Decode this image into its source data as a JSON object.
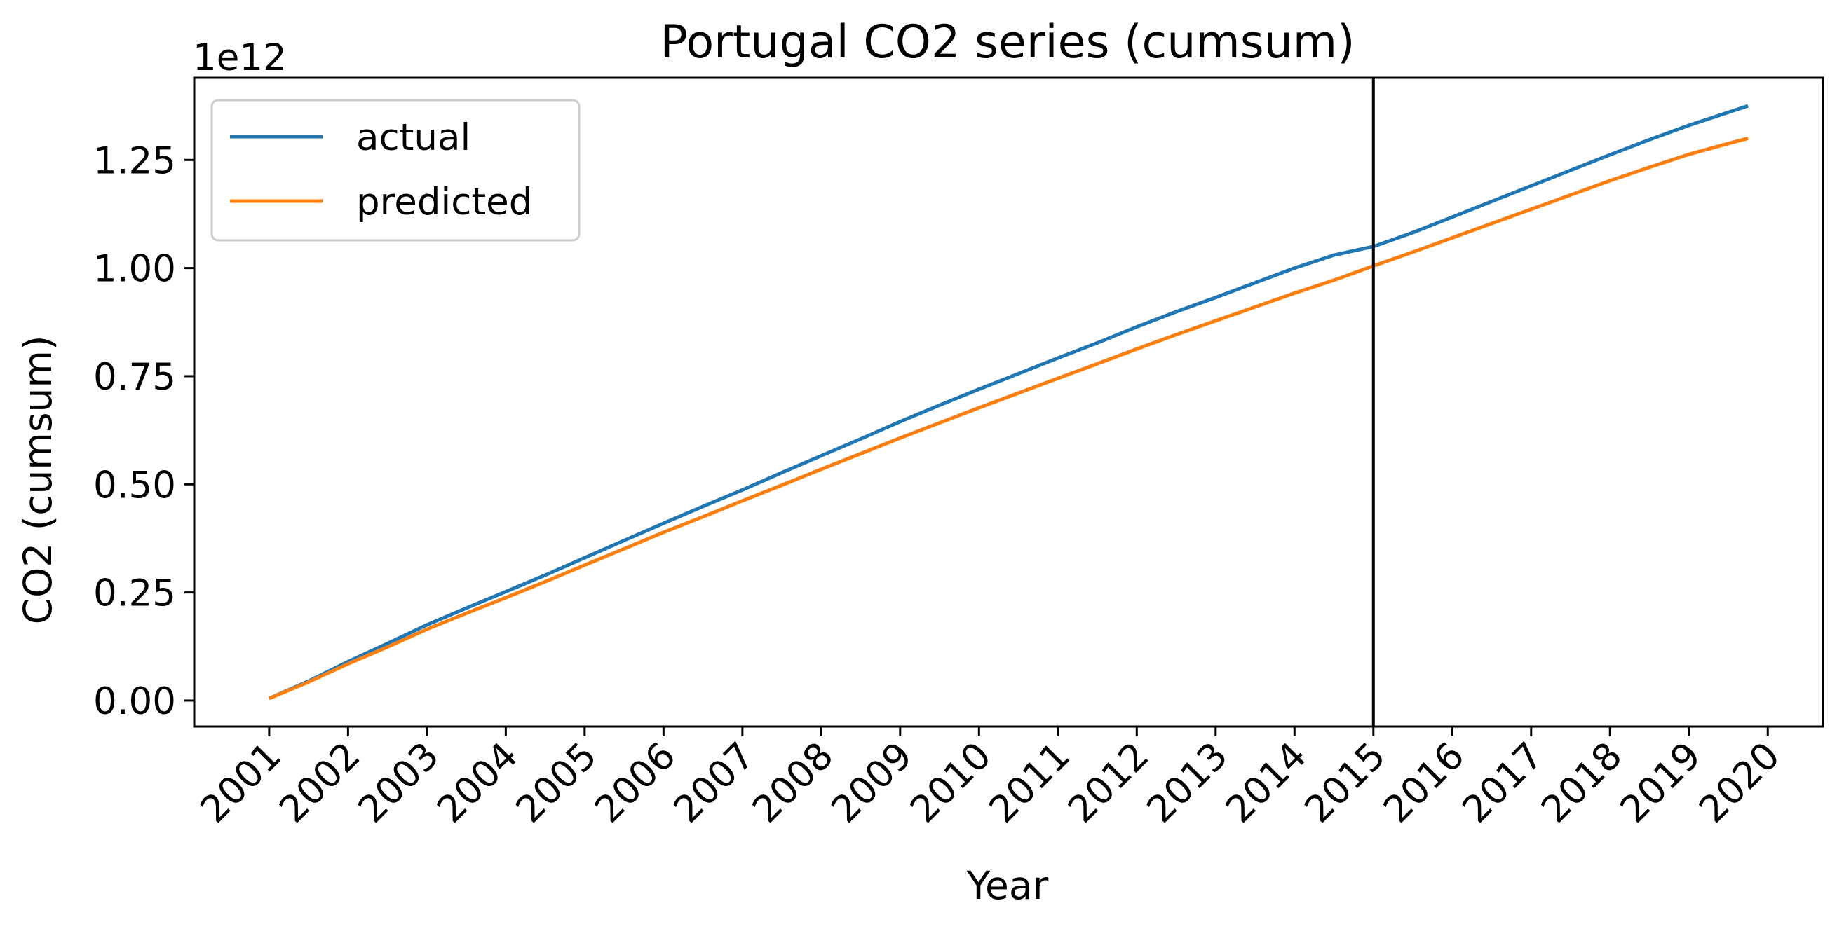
{
  "chart_data": {
    "type": "line",
    "title": "Portugal  CO2 series (cumsum)",
    "xlabel": "Year",
    "ylabel": "CO2 (cumsum)",
    "y_offset_label": "1e12",
    "xlim": [
      2000.05,
      2020.7
    ],
    "ylim": [
      -0.06,
      1.44
    ],
    "y_scale": 1000000000000.0,
    "x_ticks": [
      "2001",
      "2002",
      "2003",
      "2004",
      "2005",
      "2006",
      "2007",
      "2008",
      "2009",
      "2010",
      "2011",
      "2012",
      "2013",
      "2014",
      "2015",
      "2016",
      "2017",
      "2018",
      "2019",
      "2020"
    ],
    "y_ticks": [
      "0.00",
      "0.25",
      "0.50",
      "0.75",
      "1.00",
      "1.25"
    ],
    "grid": false,
    "legend": "upper left",
    "vertical_marker_x": 2015,
    "colors": {
      "actual": "#1f77b4",
      "predicted": "#ff7f0e",
      "marker": "#000000"
    },
    "series": [
      {
        "name": "actual",
        "x": [
          2001.0,
          2001.5,
          2002.0,
          2002.5,
          2003.0,
          2003.5,
          2004.0,
          2004.5,
          2005.0,
          2005.5,
          2006.0,
          2006.5,
          2007.0,
          2007.5,
          2008.0,
          2008.5,
          2009.0,
          2009.5,
          2010.0,
          2010.5,
          2011.0,
          2011.5,
          2012.0,
          2012.5,
          2013.0,
          2013.5,
          2014.0,
          2014.5,
          2015.0,
          2015.5,
          2016.0,
          2016.5,
          2017.0,
          2017.5,
          2018.0,
          2018.5,
          2019.0,
          2019.5,
          2019.75
        ],
        "y": [
          0.005,
          0.045,
          0.09,
          0.132,
          0.175,
          0.214,
          0.252,
          0.29,
          0.33,
          0.37,
          0.41,
          0.449,
          0.487,
          0.527,
          0.566,
          0.605,
          0.645,
          0.683,
          0.72,
          0.756,
          0.792,
          0.827,
          0.864,
          0.899,
          0.932,
          0.966,
          1.0,
          1.03,
          1.05,
          1.082,
          1.118,
          1.154,
          1.19,
          1.226,
          1.262,
          1.297,
          1.33,
          1.36,
          1.375
        ]
      },
      {
        "name": "predicted",
        "x": [
          2001.0,
          2001.5,
          2002.0,
          2002.5,
          2003.0,
          2003.5,
          2004.0,
          2004.5,
          2005.0,
          2005.5,
          2006.0,
          2006.5,
          2007.0,
          2007.5,
          2008.0,
          2008.5,
          2009.0,
          2009.5,
          2010.0,
          2010.5,
          2011.0,
          2011.5,
          2012.0,
          2012.5,
          2013.0,
          2013.5,
          2014.0,
          2014.5,
          2015.0,
          2015.5,
          2016.0,
          2016.5,
          2017.0,
          2017.5,
          2018.0,
          2018.5,
          2019.0,
          2019.5,
          2019.75
        ],
        "y": [
          0.005,
          0.043,
          0.085,
          0.124,
          0.165,
          0.202,
          0.238,
          0.275,
          0.313,
          0.351,
          0.389,
          0.425,
          0.462,
          0.498,
          0.535,
          0.571,
          0.607,
          0.642,
          0.677,
          0.711,
          0.745,
          0.779,
          0.813,
          0.846,
          0.878,
          0.91,
          0.942,
          0.972,
          1.005,
          1.037,
          1.07,
          1.103,
          1.136,
          1.169,
          1.202,
          1.233,
          1.263,
          1.288,
          1.3
        ]
      }
    ]
  }
}
